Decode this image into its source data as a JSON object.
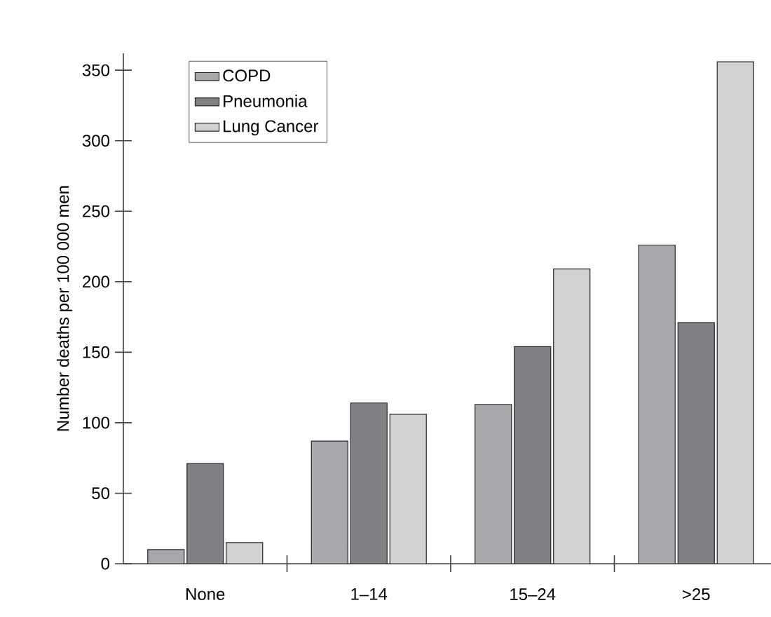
{
  "chart_data": {
    "type": "bar",
    "ylabel": "Number deaths per 100 000 men",
    "categories": [
      "None",
      "1–14",
      "15–24",
      ">25"
    ],
    "series": [
      {
        "name": "COPD",
        "color": "#a7a8ab",
        "values": [
          10,
          87,
          113,
          226
        ]
      },
      {
        "name": "Pneumonia",
        "color": "#808185",
        "values": [
          71,
          114,
          154,
          171
        ]
      },
      {
        "name": "Lung Cancer",
        "color": "#d1d2d4",
        "values": [
          15,
          106,
          209,
          356
        ]
      }
    ],
    "ylim": [
      0,
      362
    ],
    "yticks": [
      0,
      50,
      100,
      150,
      200,
      250,
      300,
      350
    ],
    "grid": false,
    "legend": "top left"
  }
}
